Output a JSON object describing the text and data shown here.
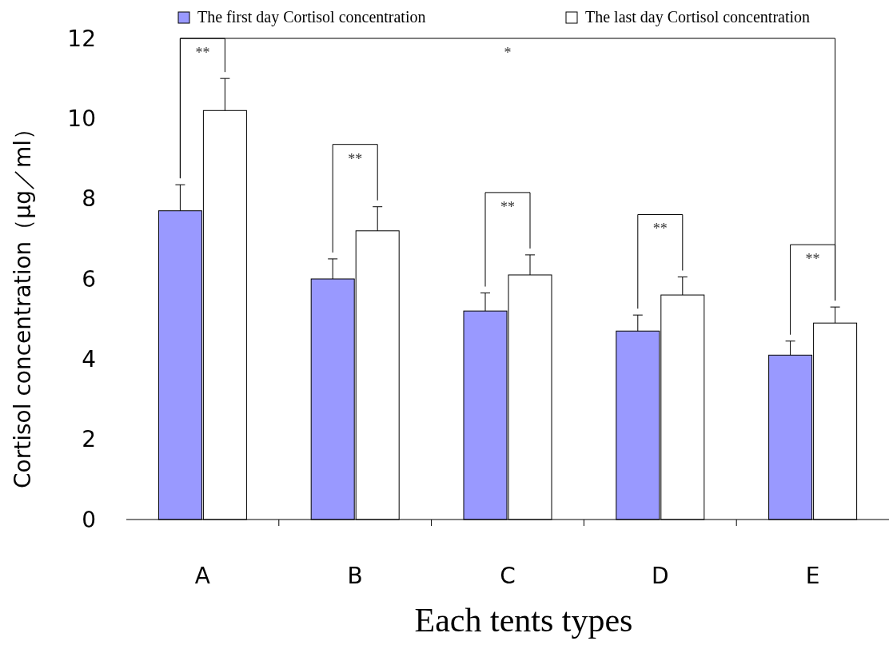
{
  "chart_data": {
    "type": "bar",
    "xlabel": "Each tents  types",
    "ylabel": "Cortisol concentration（μg／ml）",
    "categories": [
      "A",
      "B",
      "C",
      "D",
      "E"
    ],
    "series": [
      {
        "name": "The first day Cortisol concentration",
        "color": "#9999ff",
        "values": [
          7.7,
          6.0,
          5.2,
          4.7,
          4.1
        ],
        "errors": [
          [
            7.7,
            8.35
          ],
          [
            6.0,
            6.5
          ],
          [
            5.2,
            5.65
          ],
          [
            4.7,
            5.1
          ],
          [
            4.1,
            4.45
          ]
        ]
      },
      {
        "name": "The last day Cortisol concentration",
        "color": "#ffffff",
        "values": [
          10.2,
          7.2,
          6.1,
          5.6,
          4.9
        ],
        "errors": [
          [
            10.2,
            11.0
          ],
          [
            7.2,
            7.8
          ],
          [
            6.1,
            6.6
          ],
          [
            5.6,
            6.05
          ],
          [
            4.9,
            5.3
          ]
        ]
      }
    ],
    "ylim": [
      0,
      12
    ],
    "yticks": [
      0,
      2,
      4,
      6,
      8,
      10,
      12
    ],
    "grid": false,
    "legend": "top",
    "annotations": [
      "**",
      "**",
      "**",
      "**",
      "**",
      "*"
    ]
  }
}
